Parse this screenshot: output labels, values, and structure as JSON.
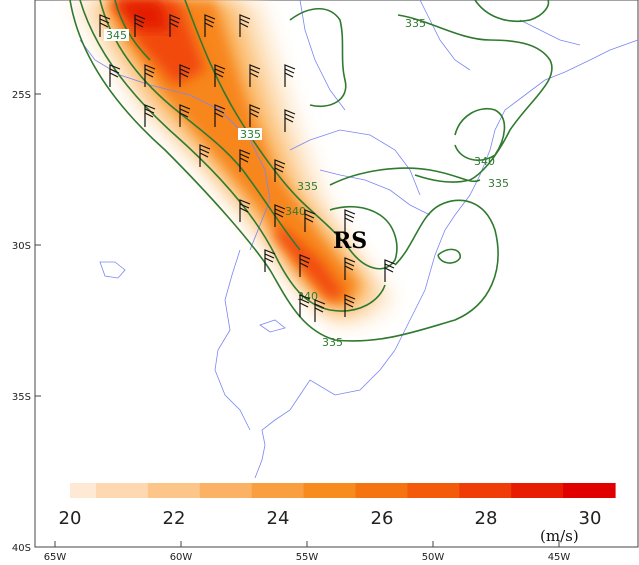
{
  "map": {
    "x_ticks": [
      "65W",
      "60W",
      "55W",
      "50W",
      "45W"
    ],
    "y_ticks": [
      "25S",
      "30S",
      "35S",
      "40S"
    ],
    "region_label": "RS"
  },
  "contours": {
    "labels": [
      "345",
      "335",
      "335",
      "335",
      "340",
      "340",
      "335",
      "340",
      "335"
    ]
  },
  "colorbar": {
    "ticks": [
      "20",
      "22",
      "24",
      "26",
      "28",
      "30"
    ],
    "units": "(m/s)",
    "range": [
      20,
      31
    ],
    "colors": [
      "#fde9d4",
      "#fdd8b0",
      "#fcc589",
      "#fbb264",
      "#fa9f40",
      "#f88b1e",
      "#f57410",
      "#f35a0a",
      "#f03c06",
      "#e81c02",
      "#e00000"
    ]
  }
}
